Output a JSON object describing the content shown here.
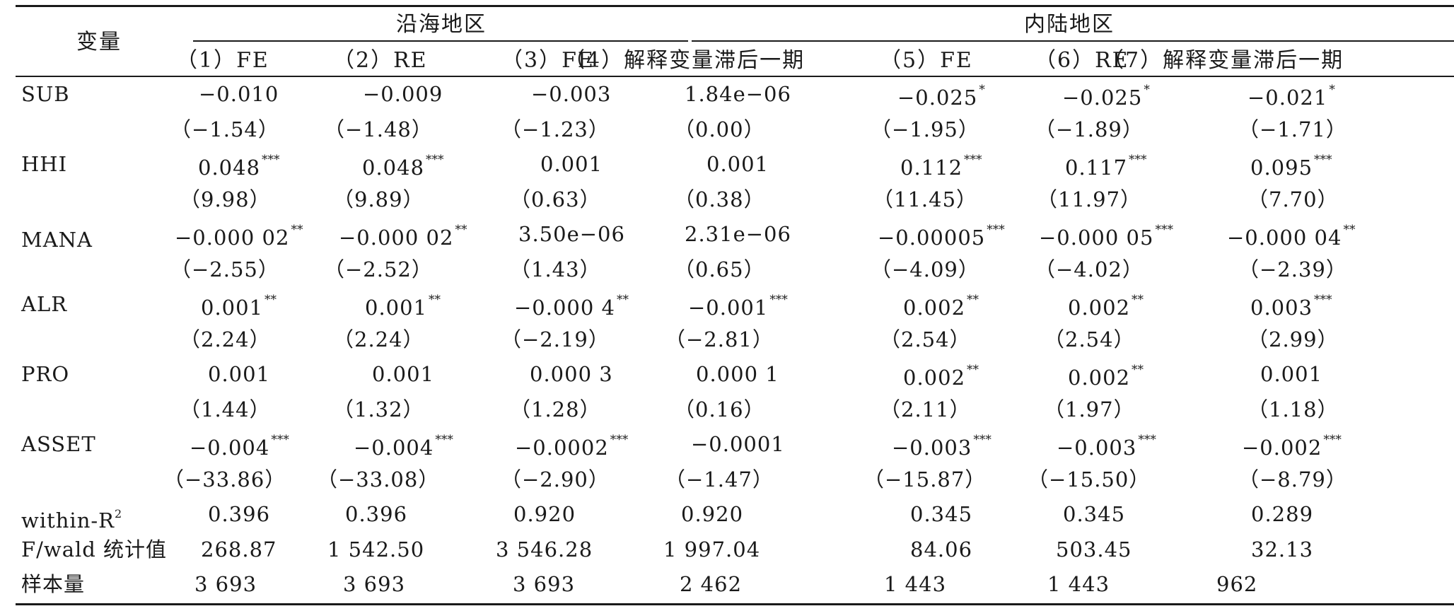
{
  "table": {
    "header": {
      "variable_label": "变量",
      "group_coastal": "沿海地区",
      "group_inland": "内陆地区",
      "columns": [
        "（1）FE",
        "（2）RE",
        "（3）FE",
        "（4）解释变量滞后一期",
        "（5）FE",
        "（6）RE",
        "（7）解释变量滞后一期"
      ]
    },
    "rows": [
      {
        "label": "SUB",
        "coef": [
          [
            "−0.010",
            ""
          ],
          [
            "−0.009",
            ""
          ],
          [
            "−0.003",
            ""
          ],
          [
            "1.84e−06",
            ""
          ],
          [
            "−0.025",
            "*"
          ],
          [
            "−0.025",
            "*"
          ],
          [
            "−0.021",
            "*"
          ]
        ],
        "tstat": [
          "（−1.54）",
          "（−1.48）",
          "（−1.23）",
          "（0.00）",
          "（−1.95）",
          "（−1.89）",
          "（−1.71）"
        ]
      },
      {
        "label": "HHI",
        "coef": [
          [
            "0.048",
            "***"
          ],
          [
            "0.048",
            "***"
          ],
          [
            "0.001",
            ""
          ],
          [
            "0.001",
            ""
          ],
          [
            "0.112",
            "***"
          ],
          [
            "0.117",
            "***"
          ],
          [
            "0.095",
            "***"
          ]
        ],
        "tstat": [
          "（9.98）",
          "（9.89）",
          "（0.63）",
          "（0.38）",
          "（11.45）",
          "（11.97）",
          "（7.70）"
        ]
      },
      {
        "label": "MANA",
        "coef": [
          [
            "−0.000 02",
            "**"
          ],
          [
            "−0.000 02",
            "**"
          ],
          [
            "3.50e−06",
            ""
          ],
          [
            "2.31e−06",
            ""
          ],
          [
            "−0.00005",
            "***"
          ],
          [
            "−0.000 05",
            "***"
          ],
          [
            "−0.000 04",
            "**"
          ]
        ],
        "tstat": [
          "（−2.55）",
          "（−2.52）",
          "（1.43）",
          "（0.65）",
          "（−4.09）",
          "（−4.02）",
          "（−2.39）"
        ]
      },
      {
        "label": "ALR",
        "coef": [
          [
            "0.001",
            "**"
          ],
          [
            "0.001",
            "**"
          ],
          [
            "−0.000 4",
            "**"
          ],
          [
            "−0.001",
            "***"
          ],
          [
            "0.002",
            "**"
          ],
          [
            "0.002",
            "**"
          ],
          [
            "0.003",
            "***"
          ]
        ],
        "tstat": [
          "（2.24）",
          "（2.24）",
          "（−2.19）",
          "（−2.81）",
          "（2.54）",
          "（2.54）",
          "（2.99）"
        ]
      },
      {
        "label": "PRO",
        "coef": [
          [
            "0.001",
            ""
          ],
          [
            "0.001",
            ""
          ],
          [
            "0.000 3",
            ""
          ],
          [
            "0.000 1",
            ""
          ],
          [
            "0.002",
            "**"
          ],
          [
            "0.002",
            "**"
          ],
          [
            "0.001",
            ""
          ]
        ],
        "tstat": [
          "（1.44）",
          "（1.32）",
          "（1.28）",
          "（0.16）",
          "（2.11）",
          "（1.97）",
          "（1.18）"
        ]
      },
      {
        "label": "ASSET",
        "coef": [
          [
            "−0.004",
            "***"
          ],
          [
            "−0.004",
            "***"
          ],
          [
            "−0.0002",
            "***"
          ],
          [
            "−0.0001",
            ""
          ],
          [
            "−0.003",
            "***"
          ],
          [
            "−0.003",
            "***"
          ],
          [
            "−0.002",
            "***"
          ]
        ],
        "tstat": [
          "（−33.86）",
          "（−33.08）",
          "（−2.90）",
          "（−1.47）",
          "（−15.87）",
          "（−15.50）",
          "（−8.79）"
        ]
      }
    ],
    "r2": {
      "label_main": "within-R",
      "label_sup": "2",
      "values": [
        "0.396",
        "0.396",
        "0.920",
        "0.920",
        "0.345",
        "0.345",
        "0.289"
      ]
    },
    "fstat": {
      "label": "F/wald 统计值",
      "values": [
        "268.87",
        "1 542.50",
        "3 546.28",
        "1 997.04",
        "84.06",
        "503.45",
        "32.13"
      ]
    },
    "n": {
      "label": "样本量",
      "values": [
        "3 693",
        "3 693",
        "3 693",
        "2 462",
        "1 443",
        "1 443",
        "962"
      ]
    }
  }
}
